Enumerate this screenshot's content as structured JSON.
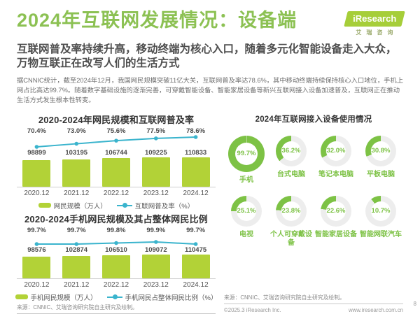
{
  "header": {
    "title": "2024年互联网发展情况：设备端",
    "logo": {
      "brand": "iResearch",
      "brand_cn": "艾瑞咨询"
    },
    "subtitle": "互联网普及率持续升高，移动终端为核心入口，随着多元化智能设备走入大众，万物互联正在改写人们的生活方式",
    "body": "据CNNIC统计，截至2024年12月，我国网民规模突破11亿大关，互联网普及率达78.6%，其中移动终端持续保持核心入口地位，手机上网占比高达99.7%。随着数字基础设施的逐渐完善，可穿戴智能设备、智能家居设备等新兴互联网接入设备加速普及，互联网正在推动生活方式发生根本性转变。"
  },
  "colors": {
    "title_green": "#8cc153",
    "bar_lime": "#b2d237",
    "donut_green": "#7dc245",
    "line_teal": "#3ab4cd",
    "track_gray": "#ededed",
    "logo_green": "#a6ce39"
  },
  "chart_data": [
    {
      "type": "bar",
      "title": "2020-2024年网民规模和互联网普及率",
      "categories": [
        "2020.12",
        "2021.12",
        "2022.12",
        "2023.12",
        "2024.12"
      ],
      "series": [
        {
          "name": "网民规模（万人）",
          "type": "bar",
          "values": [
            98899,
            103195,
            106744,
            109225,
            110833
          ]
        },
        {
          "name": "互联网普及率（%）",
          "type": "line",
          "values": [
            70.4,
            73.0,
            75.6,
            77.5,
            78.6
          ]
        }
      ],
      "legend_position": "bottom",
      "grid": false
    },
    {
      "type": "bar",
      "title": "2020-2024手机网民规模及其占整体网民比例",
      "categories": [
        "2020.12",
        "2021.12",
        "2022.12",
        "2023.12",
        "2024.12"
      ],
      "series": [
        {
          "name": "手机网民规模（万人）",
          "type": "bar",
          "values": [
            98576,
            102874,
            106510,
            109072,
            110475
          ]
        },
        {
          "name": "手机网民占整体网民比例（%）",
          "type": "line",
          "values": [
            99.7,
            99.7,
            99.8,
            99.9,
            99.7
          ]
        }
      ],
      "legend_position": "bottom",
      "grid": false
    },
    {
      "type": "pie",
      "title": "2024年互联网接入设备使用情况",
      "unit": "%",
      "items": [
        {
          "label": "手机",
          "value": 99.7
        },
        {
          "label": "台式电脑",
          "value": 36.2
        },
        {
          "label": "笔记本电脑",
          "value": 32.0
        },
        {
          "label": "平板电脑",
          "value": 30.8
        },
        {
          "label": "电视",
          "value": 25.1
        },
        {
          "label": "个人可穿戴设备",
          "value": 23.8
        },
        {
          "label": "智能家居设备",
          "value": 22.6
        },
        {
          "label": "智能网联汽车",
          "value": 10.7
        }
      ]
    }
  ],
  "footer": {
    "source": "来源：CNNIC、艾瑞咨询研究院自主研究及绘制。",
    "copyright": "©2025.3 iResearch Inc.",
    "site": "www.iresearch.com.cn",
    "page": "8"
  }
}
